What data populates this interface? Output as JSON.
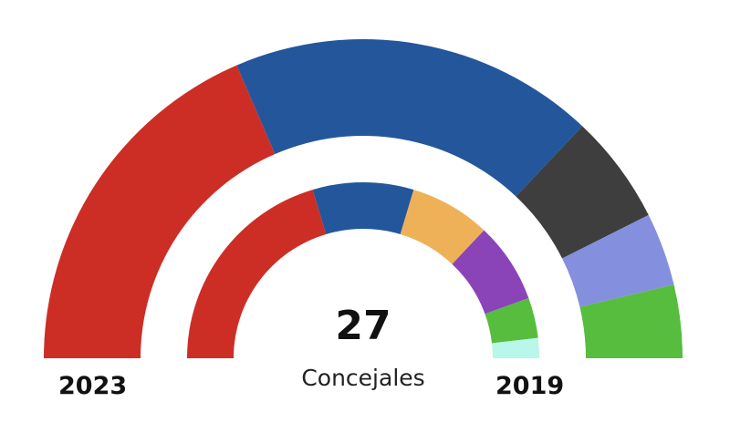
{
  "chart_data": {
    "type": "pie",
    "subtype": "hemicycle",
    "total_seats": 27,
    "total_label": "27",
    "unit_label": "Concejales",
    "rings": [
      {
        "name": "2023",
        "label": "2023",
        "position": "outer",
        "seats": [
          {
            "party": "red",
            "value": 10,
            "color": "#CC2E26"
          },
          {
            "party": "blue",
            "value": 10,
            "color": "#24569C"
          },
          {
            "party": "dark",
            "value": 3,
            "color": "#3E3E3E"
          },
          {
            "party": "lavender",
            "value": 2,
            "color": "#8490DE"
          },
          {
            "party": "green",
            "value": 2,
            "color": "#56BD3E"
          }
        ]
      },
      {
        "name": "2019",
        "label": "2019",
        "position": "inner",
        "seats": [
          {
            "party": "red",
            "value": 11,
            "color": "#CC2E26"
          },
          {
            "party": "blue",
            "value": 5,
            "color": "#24569C"
          },
          {
            "party": "orange",
            "value": 4,
            "color": "#EFB158"
          },
          {
            "party": "purple",
            "value": 4,
            "color": "#8A44B8"
          },
          {
            "party": "green",
            "value": 2,
            "color": "#56BD3E"
          },
          {
            "party": "cyan",
            "value": 1,
            "color": "#B8F7EA"
          }
        ]
      }
    ]
  }
}
